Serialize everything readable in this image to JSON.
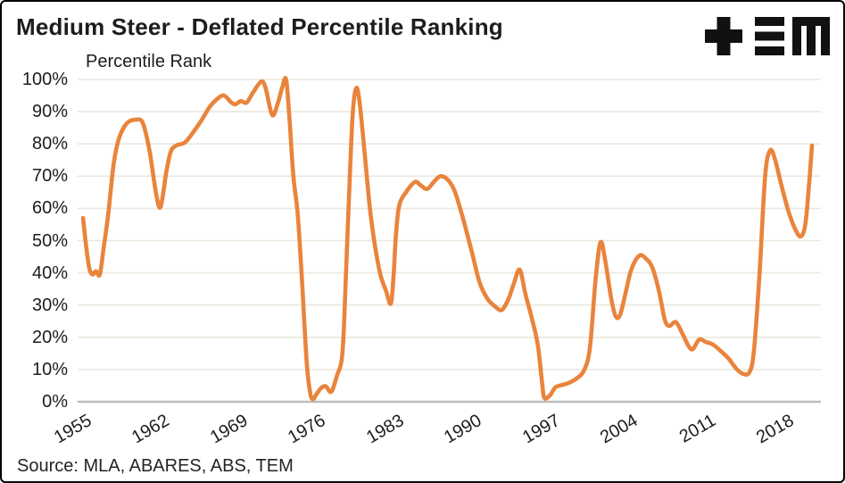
{
  "header": {
    "title": "Medium Steer - Deflated Percentile Ranking",
    "logo": "TEM"
  },
  "chart": {
    "y_axis_title": "Percentile Rank"
  },
  "footer": {
    "source": "Source: MLA, ABARES, ABS, TEM"
  },
  "colors": {
    "line": "#E9843C",
    "gridline": "#EAE7DE",
    "axis_line": "#BDBDBD",
    "text": "#1D1D1B",
    "background": "#FFFFFF",
    "logo": "#111111"
  },
  "chart_data": {
    "type": "line",
    "title": "Medium Steer - Deflated Percentile Ranking",
    "ylabel": "Percentile Rank",
    "xlabel": "",
    "grid": "horizontal",
    "legend": "none",
    "ylim": [
      0,
      100
    ],
    "xlim": [
      1954.4,
      2021
    ],
    "x_tick_years": [
      1955,
      1962,
      1969,
      1976,
      1983,
      1990,
      1997,
      2004,
      2011,
      2018
    ],
    "x_tick_labels": [
      "1955",
      "1962",
      "1969",
      "1976",
      "1983",
      "1990",
      "1997",
      "2004",
      "2011",
      "2018"
    ],
    "y_tick_values": [
      0,
      10,
      20,
      30,
      40,
      50,
      60,
      70,
      80,
      90,
      100
    ],
    "y_tick_labels": [
      "0%",
      "10%",
      "20%",
      "30%",
      "40%",
      "50%",
      "60%",
      "70%",
      "80%",
      "90%",
      "100%"
    ],
    "series": [
      {
        "name": "Medium Steer deflated percentile rank",
        "color": "#E9843C",
        "points": [
          [
            1954.85,
            57
          ],
          [
            1955.1,
            49
          ],
          [
            1955.4,
            41.5
          ],
          [
            1955.7,
            39.5
          ],
          [
            1956.0,
            40.5
          ],
          [
            1956.35,
            39.5
          ],
          [
            1956.7,
            48
          ],
          [
            1957.1,
            58
          ],
          [
            1957.6,
            74
          ],
          [
            1958.1,
            82
          ],
          [
            1958.8,
            86.5
          ],
          [
            1959.6,
            87.5
          ],
          [
            1960.2,
            86.5
          ],
          [
            1960.8,
            78
          ],
          [
            1961.4,
            64.5
          ],
          [
            1961.8,
            60.5
          ],
          [
            1962.3,
            71
          ],
          [
            1962.7,
            77.5
          ],
          [
            1963.2,
            79.5
          ],
          [
            1964.0,
            80.5
          ],
          [
            1964.8,
            84
          ],
          [
            1965.5,
            87.5
          ],
          [
            1966.2,
            91.5
          ],
          [
            1967.0,
            94.3
          ],
          [
            1967.5,
            95
          ],
          [
            1968.1,
            93
          ],
          [
            1968.5,
            92.3
          ],
          [
            1969.0,
            93.3
          ],
          [
            1969.5,
            92.8
          ],
          [
            1970.1,
            96
          ],
          [
            1970.8,
            99.3
          ],
          [
            1971.2,
            97.5
          ],
          [
            1971.8,
            89
          ],
          [
            1972.3,
            92.5
          ],
          [
            1972.7,
            97.5
          ],
          [
            1973.05,
            100
          ],
          [
            1973.35,
            88
          ],
          [
            1973.7,
            70
          ],
          [
            1974.1,
            58
          ],
          [
            1974.5,
            36
          ],
          [
            1974.9,
            12
          ],
          [
            1975.2,
            3
          ],
          [
            1975.45,
            0.8
          ],
          [
            1975.8,
            2.5
          ],
          [
            1976.2,
            4.3
          ],
          [
            1976.6,
            4.8
          ],
          [
            1977.1,
            3.1
          ],
          [
            1977.6,
            8
          ],
          [
            1978.1,
            15
          ],
          [
            1978.4,
            38
          ],
          [
            1978.65,
            60
          ],
          [
            1979.0,
            88
          ],
          [
            1979.3,
            97
          ],
          [
            1979.6,
            94
          ],
          [
            1980.1,
            77
          ],
          [
            1980.65,
            57.5
          ],
          [
            1981.4,
            41
          ],
          [
            1982.0,
            34.5
          ],
          [
            1982.45,
            30.5
          ],
          [
            1982.7,
            40
          ],
          [
            1982.9,
            52
          ],
          [
            1983.2,
            61
          ],
          [
            1983.8,
            65
          ],
          [
            1984.6,
            68.2
          ],
          [
            1985.1,
            67.2
          ],
          [
            1985.7,
            66
          ],
          [
            1986.3,
            68.2
          ],
          [
            1986.9,
            70
          ],
          [
            1987.6,
            68.7
          ],
          [
            1988.2,
            65
          ],
          [
            1988.9,
            57
          ],
          [
            1989.7,
            46.5
          ],
          [
            1990.4,
            37
          ],
          [
            1991.1,
            32
          ],
          [
            1991.8,
            29.5
          ],
          [
            1992.4,
            28.5
          ],
          [
            1993.0,
            32
          ],
          [
            1993.5,
            37
          ],
          [
            1994.0,
            41
          ],
          [
            1994.5,
            33.5
          ],
          [
            1995.0,
            27
          ],
          [
            1995.6,
            18
          ],
          [
            1996.0,
            6
          ],
          [
            1996.2,
            1.2
          ],
          [
            1996.7,
            2
          ],
          [
            1997.2,
            4.5
          ],
          [
            1997.8,
            5.2
          ],
          [
            1998.5,
            6
          ],
          [
            1999.2,
            7.5
          ],
          [
            1999.8,
            10
          ],
          [
            2000.3,
            17
          ],
          [
            2000.8,
            38
          ],
          [
            2001.25,
            49.5
          ],
          [
            2001.7,
            43
          ],
          [
            2002.2,
            32
          ],
          [
            2002.6,
            26.5
          ],
          [
            2003.0,
            27
          ],
          [
            2003.5,
            34
          ],
          [
            2004.0,
            41
          ],
          [
            2004.7,
            45.3
          ],
          [
            2005.3,
            44.5
          ],
          [
            2005.9,
            41.5
          ],
          [
            2006.5,
            34
          ],
          [
            2007.0,
            25.5
          ],
          [
            2007.4,
            23.5
          ],
          [
            2008.0,
            24.7
          ],
          [
            2008.6,
            21
          ],
          [
            2009.1,
            17.5
          ],
          [
            2009.5,
            16.3
          ],
          [
            2010.1,
            19.3
          ],
          [
            2010.7,
            18.5
          ],
          [
            2011.3,
            17.8
          ],
          [
            2012.0,
            15.8
          ],
          [
            2012.7,
            13.5
          ],
          [
            2013.4,
            10.3
          ],
          [
            2014.0,
            8.7
          ],
          [
            2014.6,
            9.2
          ],
          [
            2015.0,
            16
          ],
          [
            2015.5,
            40
          ],
          [
            2016.0,
            70
          ],
          [
            2016.45,
            78
          ],
          [
            2016.9,
            75
          ],
          [
            2017.4,
            68
          ],
          [
            2018.1,
            59
          ],
          [
            2018.7,
            53.5
          ],
          [
            2019.2,
            51.3
          ],
          [
            2019.6,
            55
          ],
          [
            2019.95,
            68
          ],
          [
            2020.2,
            79.5
          ]
        ]
      }
    ]
  }
}
